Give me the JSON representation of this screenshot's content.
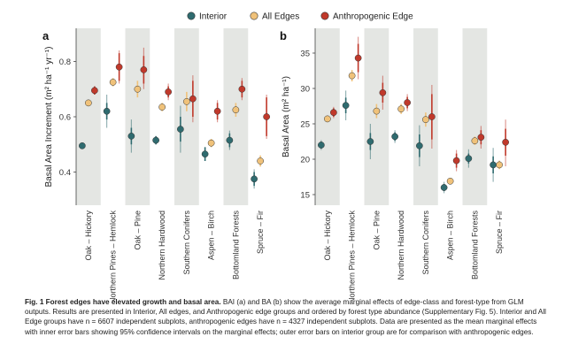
{
  "legend": {
    "items": [
      {
        "label": "Interior",
        "color": "#2f6b6f"
      },
      {
        "label": "All Edges",
        "color": "#f0c27a"
      },
      {
        "label": "Anthropogenic Edge",
        "color": "#c0392b"
      }
    ],
    "placement": "top"
  },
  "chart_data": [
    {
      "panel_label": "a",
      "type": "scatter",
      "ylabel": "Basal Area Increment (m² ha⁻¹ yr⁻¹)",
      "ylim": [
        0.28,
        0.92
      ],
      "yticks": [
        0.4,
        0.6,
        0.8
      ],
      "ytick_labels": [
        "0.4",
        "0.6",
        "0.8"
      ],
      "grid": false,
      "categories": [
        "Oak – Hickory",
        "Northern Pines – Hemlock",
        "Oak – Pine",
        "Northern Hardwood",
        "Southern Conifers",
        "Aspen – Birch",
        "Bottomland Forests",
        "Spruce – Fir"
      ],
      "series": [
        {
          "name": "Interior",
          "values": [
            0.495,
            0.62,
            0.53,
            0.515,
            0.555,
            0.465,
            0.515,
            0.375
          ],
          "inner_ci": [
            [
              0.49,
              0.5
            ],
            [
              0.59,
              0.65
            ],
            [
              0.5,
              0.56
            ],
            [
              0.5,
              0.53
            ],
            [
              0.51,
              0.6
            ],
            [
              0.44,
              0.49
            ],
            [
              0.49,
              0.54
            ],
            [
              0.35,
              0.4
            ]
          ],
          "outer_ci": [
            [
              0.49,
              0.5
            ],
            [
              0.56,
              0.68
            ],
            [
              0.47,
              0.59
            ],
            [
              0.5,
              0.53
            ],
            [
              0.47,
              0.64
            ],
            [
              0.44,
              0.49
            ],
            [
              0.48,
              0.55
            ],
            [
              0.34,
              0.41
            ]
          ]
        },
        {
          "name": "All Edges",
          "values": [
            0.65,
            0.725,
            0.7,
            0.635,
            0.655,
            0.505,
            0.625,
            0.44
          ],
          "inner_ci": [
            [
              0.64,
              0.66
            ],
            [
              0.71,
              0.74
            ],
            [
              0.67,
              0.73
            ],
            [
              0.62,
              0.65
            ],
            [
              0.62,
              0.69
            ],
            [
              0.49,
              0.52
            ],
            [
              0.6,
              0.65
            ],
            [
              0.42,
              0.46
            ]
          ]
        },
        {
          "name": "Anthropogenic Edge",
          "values": [
            0.695,
            0.78,
            0.77,
            0.69,
            0.665,
            0.62,
            0.7,
            0.6
          ],
          "inner_ci": [
            [
              0.68,
              0.71
            ],
            [
              0.73,
              0.83
            ],
            [
              0.72,
              0.82
            ],
            [
              0.67,
              0.71
            ],
            [
              0.6,
              0.73
            ],
            [
              0.59,
              0.65
            ],
            [
              0.67,
              0.73
            ],
            [
              0.53,
              0.67
            ]
          ],
          "outer_ci": [
            [
              0.68,
              0.71
            ],
            [
              0.72,
              0.84
            ],
            [
              0.7,
              0.85
            ],
            [
              0.66,
              0.72
            ],
            [
              0.58,
              0.75
            ],
            [
              0.58,
              0.66
            ],
            [
              0.66,
              0.74
            ],
            [
              0.52,
              0.68
            ]
          ]
        }
      ]
    },
    {
      "panel_label": "b",
      "type": "scatter",
      "ylabel": "Basal Area (m² ha⁻¹)",
      "ylim": [
        13.5,
        38.5
      ],
      "yticks": [
        15,
        20,
        25,
        30,
        35
      ],
      "ytick_labels": [
        "15",
        "20",
        "25",
        "30",
        "35"
      ],
      "grid": false,
      "categories": [
        "Oak – Hickory",
        "Northern Pines – Hemlock",
        "Oak – Pine",
        "Northern Hardwood",
        "Southern Conifers",
        "Aspen – Birch",
        "Bottomland Forests",
        "Spruce – Fir"
      ],
      "series": [
        {
          "name": "Interior",
          "values": [
            22.0,
            27.6,
            22.5,
            23.2,
            21.9,
            16.0,
            20.1,
            19.2
          ],
          "inner_ci": [
            [
              21.5,
              22.5
            ],
            [
              26.5,
              28.7
            ],
            [
              21.3,
              23.7
            ],
            [
              22.6,
              23.8
            ],
            [
              20.3,
              23.5
            ],
            [
              15.5,
              16.5
            ],
            [
              19.4,
              20.8
            ],
            [
              18.0,
              20.4
            ]
          ],
          "outer_ci": [
            [
              21.3,
              22.7
            ],
            [
              25.5,
              29.7
            ],
            [
              20.0,
              25.0
            ],
            [
              22.3,
              24.1
            ],
            [
              19.0,
              24.8
            ],
            [
              15.2,
              16.8
            ],
            [
              18.8,
              21.4
            ],
            [
              16.8,
              21.6
            ]
          ]
        },
        {
          "name": "All Edges",
          "values": [
            25.7,
            31.8,
            26.8,
            27.1,
            25.6,
            16.9,
            22.6,
            19.2
          ],
          "inner_ci": [
            [
              25.3,
              26.1
            ],
            [
              31.0,
              32.6
            ],
            [
              25.8,
              27.8
            ],
            [
              26.4,
              27.8
            ],
            [
              24.6,
              26.6
            ],
            [
              16.5,
              17.3
            ],
            [
              22.0,
              23.2
            ],
            [
              18.6,
              19.8
            ]
          ]
        },
        {
          "name": "Anthropogenic Edge",
          "values": [
            26.6,
            34.3,
            29.4,
            28.0,
            26.0,
            19.8,
            23.1,
            22.4
          ],
          "inner_ci": [
            [
              26.0,
              27.2
            ],
            [
              32.3,
              36.3
            ],
            [
              28.0,
              30.8
            ],
            [
              27.2,
              28.8
            ],
            [
              22.8,
              29.2
            ],
            [
              18.8,
              20.8
            ],
            [
              22.1,
              24.1
            ],
            [
              20.5,
              24.3
            ]
          ],
          "outer_ci": [
            [
              25.8,
              27.4
            ],
            [
              31.3,
              37.3
            ],
            [
              27.0,
              31.8
            ],
            [
              26.8,
              29.2
            ],
            [
              21.5,
              30.5
            ],
            [
              18.3,
              21.3
            ],
            [
              21.5,
              24.7
            ],
            [
              19.0,
              25.6
            ]
          ]
        }
      ]
    }
  ],
  "caption": {
    "bold": "Fig. 1 Forest edges have elevated growth and basal area.",
    "text": " BAI (a) and BA (b) show the average marginal effects of edge-class and forest-type from GLM outputs. Results are presented in Interior, All edges, and Anthropogenic edge groups and ordered by forest type abundance (Supplementary Fig. 5). Interior and All Edge groups have n = 6607 independent subplots, anthropogenic edges have n = 4327 independent subplots. Data are presented as the mean marginal effects with inner error bars showing 95% confidence intervals on the marginal effects; outer error bars on interior group are for comparison with anthropogenic edges."
  }
}
